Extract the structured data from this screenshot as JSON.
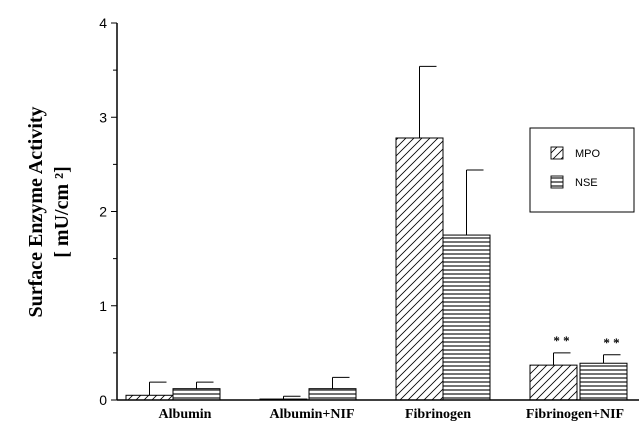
{
  "chart_data": {
    "type": "bar",
    "title": "",
    "xlabel": "",
    "ylabel_line1": "Surface  Enzyme  Activity",
    "ylabel_line2": "[  mU/cm ²]",
    "ylim": [
      0,
      4
    ],
    "yticks": [
      "0",
      "1",
      "2",
      "3",
      "4"
    ],
    "categories": [
      "Albumin",
      "Albumin+NIF",
      "Fibrinogen",
      "Fibrinogen+NIF"
    ],
    "series": [
      {
        "name": "MPO",
        "pattern": "diagonal",
        "values": [
          0.05,
          0.01,
          2.78,
          0.37
        ],
        "errors": [
          0.14,
          0.03,
          0.76,
          0.13
        ],
        "annotations": [
          "",
          "",
          "",
          "* *"
        ]
      },
      {
        "name": "NSE",
        "pattern": "horizontal",
        "values": [
          0.12,
          0.12,
          1.75,
          0.39
        ],
        "errors": [
          0.07,
          0.12,
          0.69,
          0.09
        ],
        "annotations": [
          "",
          "",
          "",
          "* *"
        ]
      }
    ],
    "legend_position": "right",
    "grid": false,
    "colors": {
      "bar_fill": "#ffffff",
      "pattern": "#000000",
      "axis": "#000000"
    }
  }
}
